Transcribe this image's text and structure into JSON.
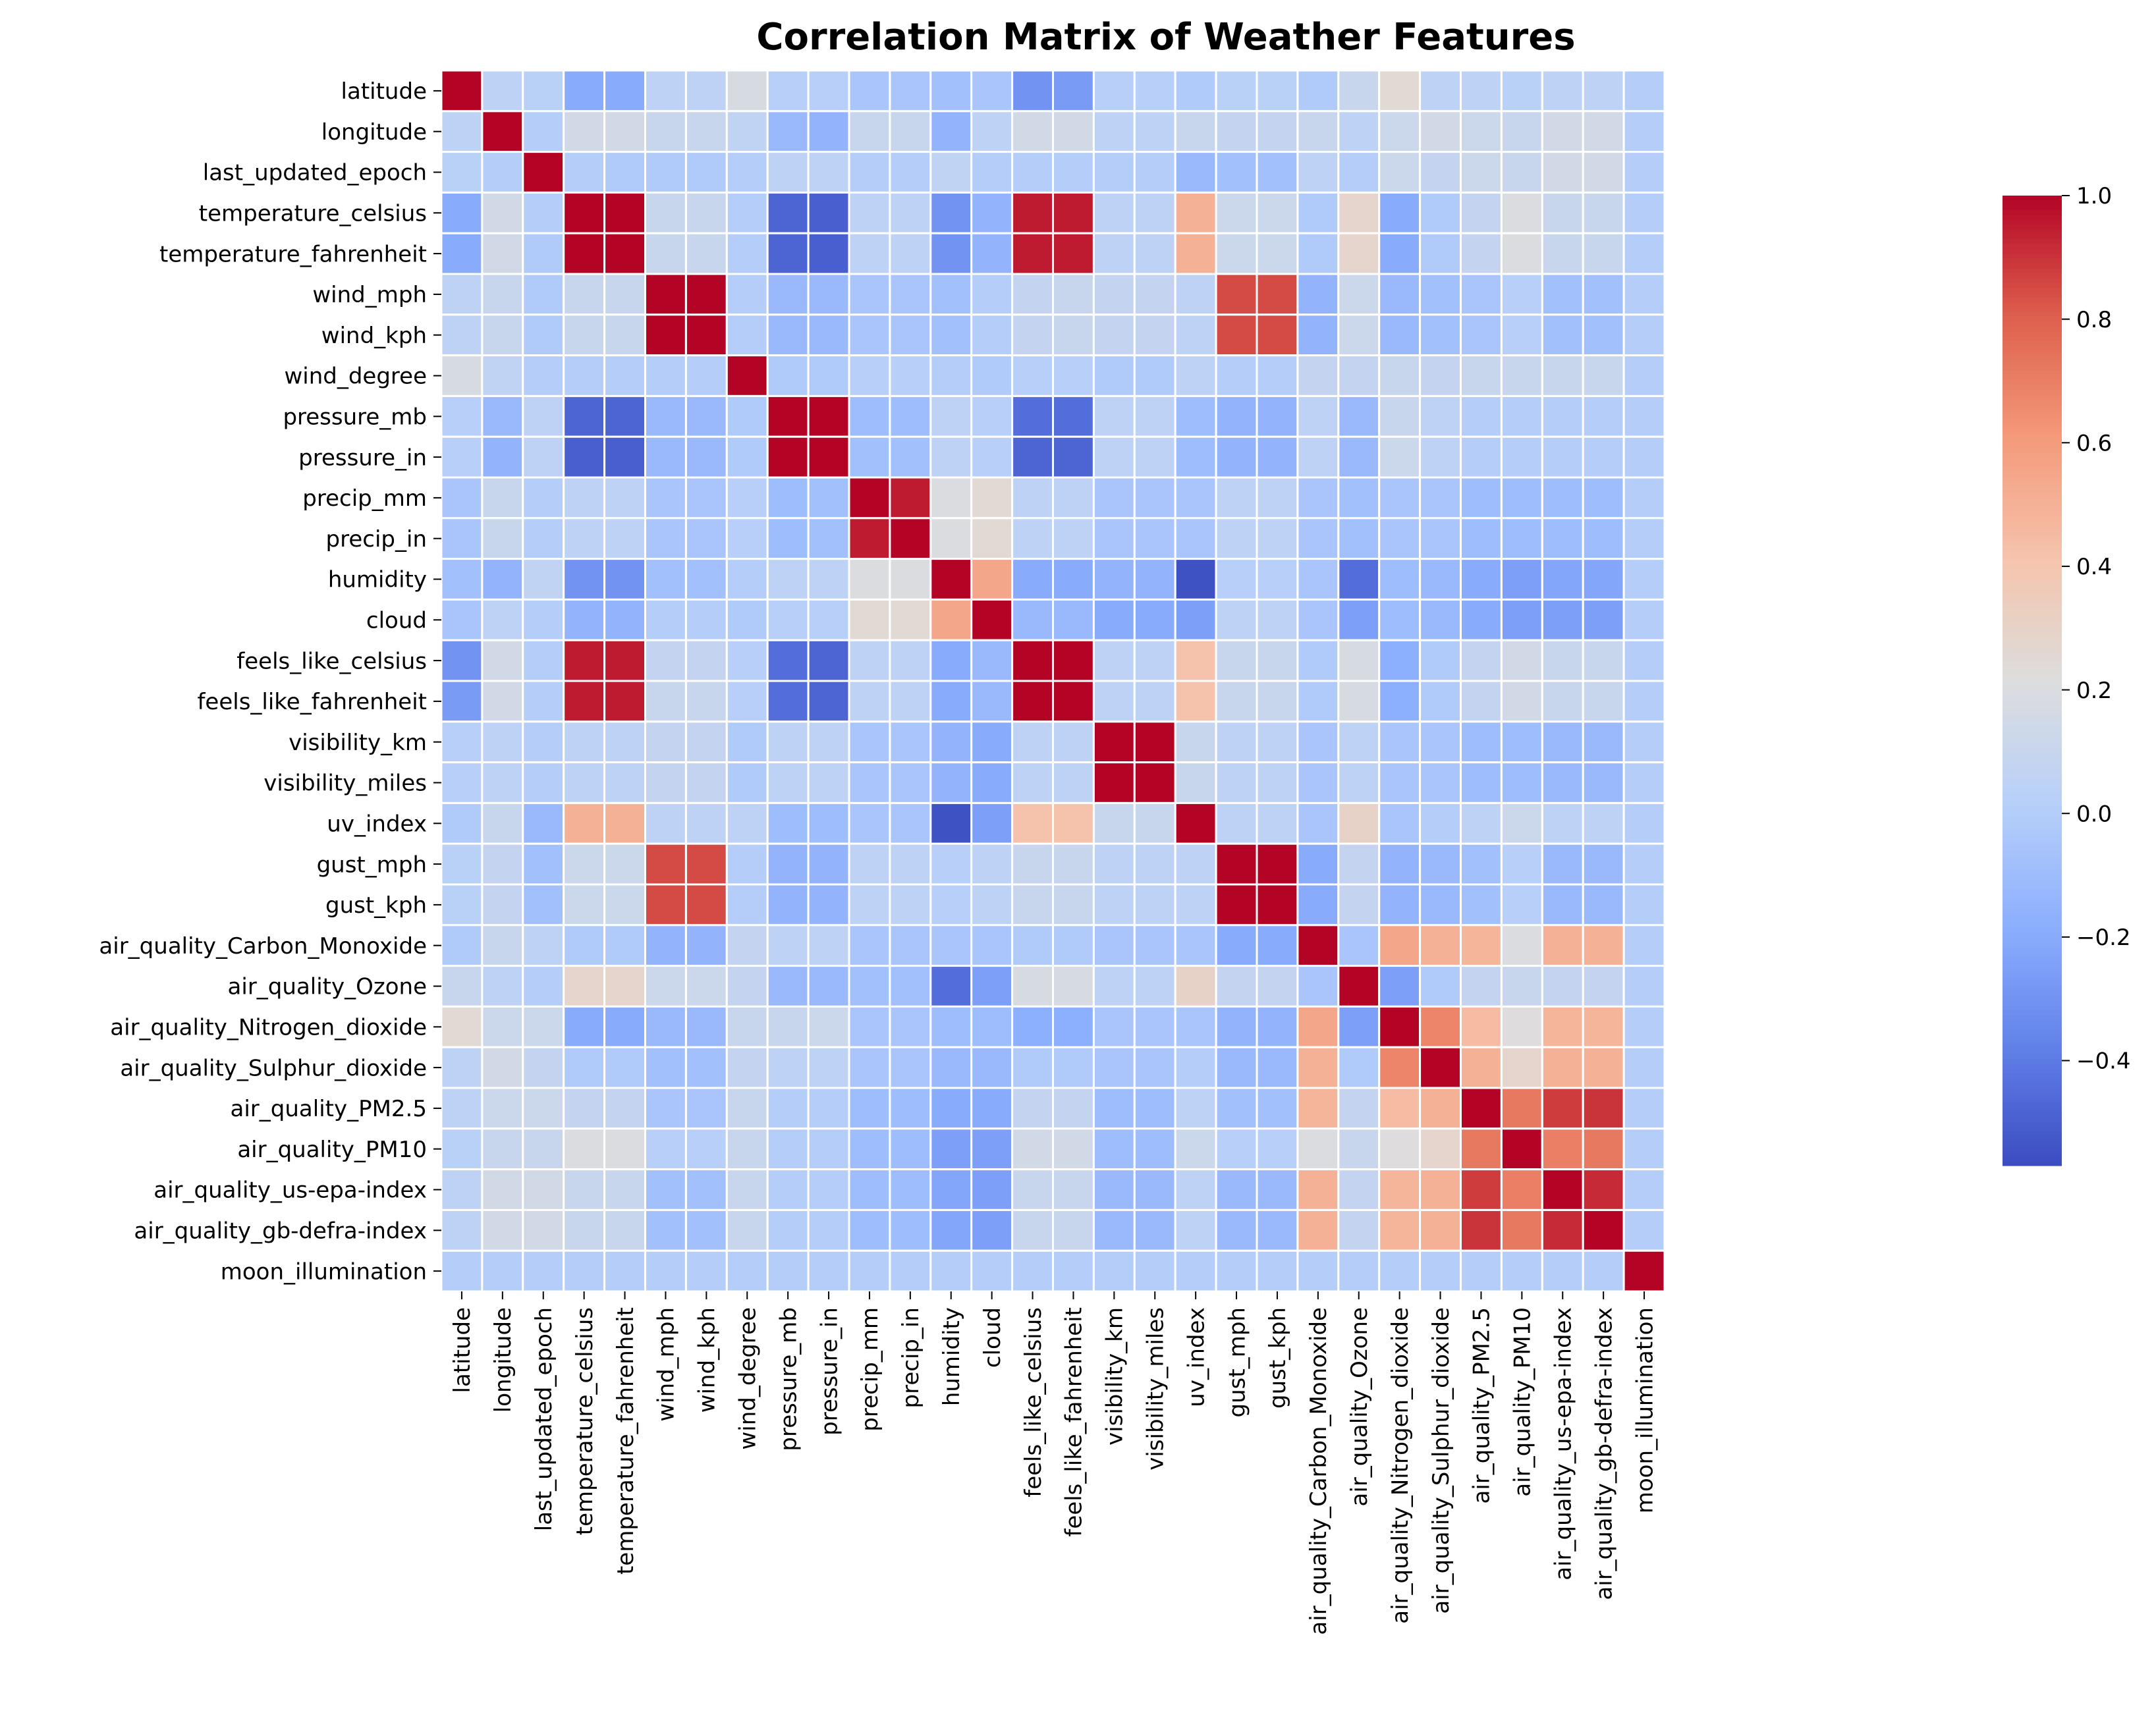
{
  "chart_data": {
    "type": "heatmap",
    "title": "Correlation Matrix of Weather Features",
    "labels": [
      "latitude",
      "longitude",
      "last_updated_epoch",
      "temperature_celsius",
      "temperature_fahrenheit",
      "wind_mph",
      "wind_kph",
      "wind_degree",
      "pressure_mb",
      "pressure_in",
      "precip_mm",
      "precip_in",
      "humidity",
      "cloud",
      "feels_like_celsius",
      "feels_like_fahrenheit",
      "visibility_km",
      "visibility_miles",
      "uv_index",
      "gust_mph",
      "gust_kph",
      "air_quality_Carbon_Monoxide",
      "air_quality_Ozone",
      "air_quality_Nitrogen_dioxide",
      "air_quality_Sulphur_dioxide",
      "air_quality_PM2.5",
      "air_quality_PM10",
      "air_quality_us-epa-index",
      "air_quality_gb-defra-index",
      "moon_illumination"
    ],
    "values": [
      [
        1.0,
        0.05,
        0.03,
        -0.2,
        -0.2,
        0.05,
        0.05,
        0.18,
        0.02,
        0.02,
        -0.05,
        -0.05,
        -0.08,
        -0.05,
        -0.3,
        -0.27,
        0.02,
        0.02,
        -0.02,
        0.03,
        0.03,
        -0.02,
        0.1,
        0.25,
        0.05,
        0.05,
        0.03,
        0.05,
        0.05,
        0.0
      ],
      [
        0.05,
        1.0,
        0.0,
        0.15,
        0.15,
        0.1,
        0.1,
        0.06,
        -0.12,
        -0.15,
        0.1,
        0.1,
        -0.15,
        0.05,
        0.15,
        0.15,
        0.05,
        0.05,
        0.1,
        0.08,
        0.08,
        0.1,
        0.05,
        0.12,
        0.15,
        0.12,
        0.1,
        0.15,
        0.15,
        0.0
      ],
      [
        0.03,
        0.0,
        1.0,
        0.0,
        -0.02,
        -0.02,
        -0.02,
        0.0,
        0.05,
        0.05,
        0.0,
        0.0,
        0.06,
        0.0,
        0.0,
        0.0,
        0.0,
        0.0,
        -0.12,
        -0.08,
        -0.08,
        0.05,
        0.0,
        0.12,
        0.08,
        0.12,
        0.1,
        0.15,
        0.15,
        0.0
      ],
      [
        -0.2,
        0.15,
        0.0,
        1.0,
        1.0,
        0.1,
        0.1,
        0.0,
        -0.48,
        -0.5,
        0.05,
        0.05,
        -0.3,
        -0.15,
        0.95,
        0.95,
        0.05,
        0.05,
        0.5,
        0.12,
        0.12,
        -0.02,
        0.28,
        -0.2,
        -0.02,
        0.08,
        0.2,
        0.1,
        0.1,
        0.0
      ],
      [
        -0.2,
        0.15,
        -0.02,
        1.0,
        1.0,
        0.1,
        0.1,
        0.0,
        -0.48,
        -0.5,
        0.05,
        0.05,
        -0.3,
        -0.15,
        0.95,
        0.95,
        0.05,
        0.05,
        0.5,
        0.12,
        0.12,
        -0.02,
        0.28,
        -0.2,
        -0.02,
        0.08,
        0.2,
        0.1,
        0.1,
        0.0
      ],
      [
        0.05,
        0.1,
        -0.02,
        0.1,
        0.1,
        1.0,
        1.0,
        0.0,
        -0.12,
        -0.12,
        -0.05,
        -0.05,
        -0.08,
        0.0,
        0.08,
        0.1,
        0.08,
        0.08,
        0.05,
        0.85,
        0.85,
        -0.15,
        0.12,
        -0.12,
        -0.08,
        -0.05,
        0.02,
        -0.08,
        -0.08,
        0.0
      ],
      [
        0.05,
        0.1,
        -0.02,
        0.1,
        0.1,
        1.0,
        1.0,
        0.0,
        -0.12,
        -0.12,
        -0.05,
        -0.05,
        -0.08,
        0.0,
        0.08,
        0.1,
        0.08,
        0.08,
        0.05,
        0.85,
        0.85,
        -0.15,
        0.12,
        -0.12,
        -0.08,
        -0.05,
        0.02,
        -0.08,
        -0.08,
        0.0
      ],
      [
        0.18,
        0.06,
        0.0,
        0.0,
        0.0,
        0.0,
        0.0,
        1.0,
        -0.02,
        -0.02,
        0.02,
        0.02,
        0.0,
        -0.02,
        0.02,
        0.02,
        -0.02,
        -0.02,
        0.05,
        0.0,
        0.0,
        0.08,
        0.08,
        0.1,
        0.08,
        0.1,
        0.1,
        0.1,
        0.1,
        0.0
      ],
      [
        0.02,
        -0.12,
        0.05,
        -0.48,
        -0.48,
        -0.12,
        -0.12,
        -0.02,
        1.0,
        1.0,
        -0.1,
        -0.1,
        0.05,
        0.02,
        -0.45,
        -0.45,
        0.05,
        0.05,
        -0.1,
        -0.15,
        -0.15,
        0.05,
        -0.12,
        0.1,
        0.05,
        0.0,
        0.0,
        0.0,
        0.0,
        0.0
      ],
      [
        0.02,
        -0.15,
        0.05,
        -0.5,
        -0.5,
        -0.12,
        -0.12,
        -0.02,
        1.0,
        1.0,
        -0.08,
        -0.08,
        0.05,
        0.02,
        -0.48,
        -0.48,
        0.05,
        0.05,
        -0.1,
        -0.15,
        -0.15,
        0.05,
        -0.12,
        0.12,
        0.05,
        0.0,
        0.0,
        0.0,
        0.0,
        0.0
      ],
      [
        -0.05,
        0.1,
        0.0,
        0.05,
        0.05,
        -0.05,
        -0.05,
        0.02,
        -0.1,
        -0.08,
        1.0,
        0.95,
        0.2,
        0.25,
        0.05,
        0.05,
        -0.05,
        -0.05,
        -0.05,
        0.05,
        0.05,
        -0.05,
        -0.08,
        -0.05,
        -0.05,
        -0.1,
        -0.1,
        -0.1,
        -0.1,
        0.0
      ],
      [
        -0.05,
        0.1,
        0.0,
        0.05,
        0.05,
        -0.05,
        -0.05,
        0.02,
        -0.1,
        -0.08,
        0.95,
        1.0,
        0.2,
        0.25,
        0.05,
        0.05,
        -0.05,
        -0.05,
        -0.05,
        0.05,
        0.05,
        -0.05,
        -0.08,
        -0.05,
        -0.05,
        -0.1,
        -0.1,
        -0.1,
        -0.1,
        0.0
      ],
      [
        -0.08,
        -0.15,
        0.06,
        -0.3,
        -0.3,
        -0.08,
        -0.08,
        0.0,
        0.05,
        0.05,
        0.2,
        0.2,
        1.0,
        0.55,
        -0.2,
        -0.2,
        -0.15,
        -0.15,
        -0.55,
        0.02,
        0.02,
        -0.05,
        -0.45,
        -0.1,
        -0.12,
        -0.2,
        -0.25,
        -0.22,
        -0.22,
        0.0
      ],
      [
        -0.05,
        0.05,
        0.0,
        -0.15,
        -0.15,
        0.0,
        0.0,
        -0.02,
        0.02,
        0.02,
        0.25,
        0.25,
        0.55,
        1.0,
        -0.12,
        -0.12,
        -0.2,
        -0.2,
        -0.25,
        0.05,
        0.05,
        -0.05,
        -0.25,
        -0.1,
        -0.12,
        -0.2,
        -0.25,
        -0.25,
        -0.25,
        0.0
      ],
      [
        -0.3,
        0.15,
        0.0,
        0.95,
        0.95,
        0.08,
        0.08,
        0.02,
        -0.45,
        -0.48,
        0.05,
        0.05,
        -0.2,
        -0.12,
        1.0,
        1.0,
        0.05,
        0.05,
        0.42,
        0.1,
        0.1,
        -0.02,
        0.18,
        -0.18,
        -0.02,
        0.08,
        0.15,
        0.1,
        0.1,
        0.0
      ],
      [
        -0.27,
        0.15,
        0.0,
        0.95,
        0.95,
        0.1,
        0.1,
        0.02,
        -0.45,
        -0.48,
        0.05,
        0.05,
        -0.2,
        -0.12,
        1.0,
        1.0,
        0.05,
        0.05,
        0.42,
        0.1,
        0.1,
        -0.02,
        0.18,
        -0.18,
        -0.02,
        0.08,
        0.15,
        0.1,
        0.1,
        0.0
      ],
      [
        0.02,
        0.05,
        0.0,
        0.05,
        0.05,
        0.08,
        0.08,
        -0.02,
        0.05,
        0.05,
        -0.05,
        -0.05,
        -0.15,
        -0.2,
        0.05,
        0.05,
        1.0,
        1.0,
        0.1,
        0.05,
        0.05,
        -0.05,
        0.05,
        -0.05,
        -0.05,
        -0.1,
        -0.1,
        -0.12,
        -0.12,
        0.0
      ],
      [
        0.02,
        0.05,
        0.0,
        0.05,
        0.05,
        0.08,
        0.08,
        -0.02,
        0.05,
        0.05,
        -0.05,
        -0.05,
        -0.15,
        -0.2,
        0.05,
        0.05,
        1.0,
        1.0,
        0.1,
        0.05,
        0.05,
        -0.05,
        0.05,
        -0.05,
        -0.05,
        -0.1,
        -0.1,
        -0.12,
        -0.12,
        0.0
      ],
      [
        -0.02,
        0.1,
        -0.12,
        0.5,
        0.5,
        0.05,
        0.05,
        0.05,
        -0.1,
        -0.1,
        -0.05,
        -0.05,
        -0.55,
        -0.25,
        0.42,
        0.42,
        0.1,
        0.1,
        1.0,
        0.05,
        0.05,
        -0.05,
        0.3,
        -0.05,
        0.0,
        0.05,
        0.12,
        0.05,
        0.05,
        0.0
      ],
      [
        0.03,
        0.08,
        -0.08,
        0.12,
        0.12,
        0.85,
        0.85,
        0.0,
        -0.15,
        -0.15,
        0.05,
        0.05,
        0.02,
        0.05,
        0.1,
        0.1,
        0.05,
        0.05,
        0.05,
        1.0,
        1.0,
        -0.2,
        0.08,
        -0.15,
        -0.12,
        -0.08,
        0.02,
        -0.12,
        -0.12,
        0.0
      ],
      [
        0.03,
        0.08,
        -0.08,
        0.12,
        0.12,
        0.85,
        0.85,
        0.0,
        -0.15,
        -0.15,
        0.05,
        0.05,
        0.02,
        0.05,
        0.1,
        0.1,
        0.05,
        0.05,
        0.05,
        1.0,
        1.0,
        -0.2,
        0.08,
        -0.15,
        -0.12,
        -0.08,
        0.02,
        -0.12,
        -0.12,
        0.0
      ],
      [
        -0.02,
        0.1,
        0.05,
        -0.02,
        -0.02,
        -0.15,
        -0.15,
        0.08,
        0.05,
        0.05,
        -0.05,
        -0.05,
        -0.05,
        -0.05,
        -0.02,
        -0.02,
        -0.05,
        -0.05,
        -0.05,
        -0.2,
        -0.2,
        1.0,
        -0.05,
        0.55,
        0.5,
        0.48,
        0.2,
        0.5,
        0.5,
        0.0
      ],
      [
        0.1,
        0.05,
        0.0,
        0.28,
        0.28,
        0.12,
        0.12,
        0.08,
        -0.12,
        -0.12,
        -0.08,
        -0.08,
        -0.45,
        -0.25,
        0.18,
        0.18,
        0.05,
        0.05,
        0.3,
        0.08,
        0.08,
        -0.05,
        1.0,
        -0.25,
        -0.02,
        0.08,
        0.1,
        0.08,
        0.08,
        0.0
      ],
      [
        0.25,
        0.12,
        0.12,
        -0.2,
        -0.2,
        -0.12,
        -0.12,
        0.1,
        0.1,
        0.12,
        -0.05,
        -0.05,
        -0.1,
        -0.1,
        -0.18,
        -0.18,
        -0.05,
        -0.05,
        -0.05,
        -0.15,
        -0.15,
        0.55,
        -0.25,
        1.0,
        0.68,
        0.45,
        0.22,
        0.48,
        0.48,
        0.0
      ],
      [
        0.05,
        0.15,
        0.08,
        -0.02,
        -0.02,
        -0.08,
        -0.08,
        0.08,
        0.05,
        0.05,
        -0.05,
        -0.05,
        -0.12,
        -0.12,
        -0.02,
        -0.02,
        -0.05,
        -0.05,
        0.0,
        -0.12,
        -0.12,
        0.5,
        -0.02,
        0.68,
        1.0,
        0.5,
        0.28,
        0.5,
        0.5,
        0.0
      ],
      [
        0.05,
        0.12,
        0.12,
        0.08,
        0.08,
        -0.05,
        -0.05,
        0.1,
        0.0,
        0.0,
        -0.1,
        -0.1,
        -0.2,
        -0.2,
        0.08,
        0.08,
        -0.1,
        -0.1,
        0.05,
        -0.08,
        -0.08,
        0.48,
        0.08,
        0.45,
        0.5,
        1.0,
        0.72,
        0.88,
        0.9,
        0.0
      ],
      [
        0.03,
        0.1,
        0.1,
        0.2,
        0.2,
        0.02,
        0.02,
        0.1,
        0.0,
        0.0,
        -0.1,
        -0.1,
        -0.25,
        -0.25,
        0.15,
        0.15,
        -0.1,
        -0.1,
        0.12,
        0.02,
        0.02,
        0.2,
        0.1,
        0.22,
        0.28,
        0.72,
        1.0,
        0.7,
        0.72,
        0.0
      ],
      [
        0.05,
        0.15,
        0.15,
        0.1,
        0.1,
        -0.08,
        -0.08,
        0.1,
        0.0,
        0.0,
        -0.1,
        -0.1,
        -0.22,
        -0.25,
        0.1,
        0.1,
        -0.12,
        -0.12,
        0.05,
        -0.12,
        -0.12,
        0.5,
        0.08,
        0.48,
        0.5,
        0.88,
        0.7,
        1.0,
        0.92,
        0.0
      ],
      [
        0.05,
        0.15,
        0.15,
        0.1,
        0.1,
        -0.08,
        -0.08,
        0.1,
        0.0,
        0.0,
        -0.1,
        -0.1,
        -0.22,
        -0.25,
        0.1,
        0.1,
        -0.12,
        -0.12,
        0.05,
        -0.12,
        -0.12,
        0.5,
        0.08,
        0.48,
        0.5,
        0.9,
        0.72,
        0.92,
        1.0,
        0.0
      ],
      [
        0.0,
        0.0,
        0.0,
        0.0,
        0.0,
        0.0,
        0.0,
        0.0,
        0.0,
        0.0,
        0.0,
        0.0,
        0.0,
        0.0,
        0.0,
        0.0,
        0.0,
        0.0,
        0.0,
        0.0,
        0.0,
        0.0,
        0.0,
        0.0,
        0.0,
        0.0,
        0.0,
        0.0,
        0.0,
        1.0
      ]
    ],
    "colorbar": {
      "vmin": -0.57,
      "vmax": 1.0,
      "ticks": [
        -0.4,
        -0.2,
        0.0,
        0.2,
        0.4,
        0.6,
        0.8,
        1.0
      ],
      "tick_labels": [
        "−0.4",
        "−0.2",
        "0.0",
        "0.2",
        "0.4",
        "0.6",
        "0.8",
        "1.0"
      ],
      "colormap": "coolwarm"
    },
    "cell_border_color": "#ffffff",
    "xlabel": "",
    "ylabel": ""
  }
}
